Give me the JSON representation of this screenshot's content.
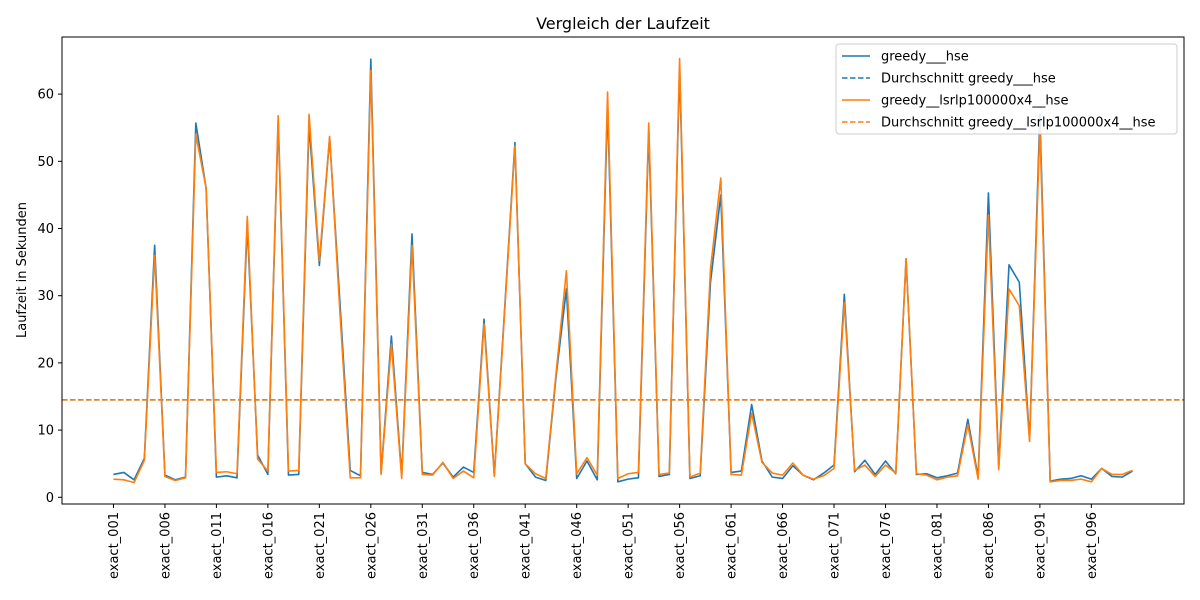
{
  "chart_data": {
    "type": "line",
    "title": "Vergleich der Laufzeit",
    "xlabel": "",
    "ylabel": "Laufzeit in Sekunden",
    "ylim": [
      -1,
      68.5
    ],
    "yticks": [
      0,
      10,
      20,
      30,
      40,
      50,
      60
    ],
    "x_tick_labels": [
      "exact_001",
      "exact_006",
      "exact_011",
      "exact_016",
      "exact_021",
      "exact_026",
      "exact_031",
      "exact_036",
      "exact_041",
      "exact_046",
      "exact_051",
      "exact_056",
      "exact_061",
      "exact_066",
      "exact_071",
      "exact_076",
      "exact_081",
      "exact_086",
      "exact_091",
      "exact_096"
    ],
    "grid": false,
    "legend_position": "top-right",
    "colors": {
      "greedy_hse": "#1f77b4",
      "greedy_lsrlp": "#ff7f0e"
    },
    "series": [
      {
        "name": "greedy___hse",
        "style": "solid",
        "color": "#1f77b4",
        "values": [
          3.4,
          3.7,
          2.6,
          5.8,
          37.5,
          3.3,
          2.6,
          3.0,
          55.7,
          46.0,
          3.0,
          3.2,
          2.9,
          40.5,
          6.3,
          3.4,
          56.0,
          3.3,
          3.4,
          55.5,
          34.5,
          53.5,
          29.0,
          4.0,
          3.2,
          65.2,
          3.6,
          24.0,
          3.2,
          39.2,
          3.7,
          3.4,
          5.1,
          3.0,
          4.5,
          3.7,
          26.5,
          3.3,
          28.0,
          52.8,
          5.0,
          3.0,
          2.5,
          18.0,
          31.0,
          2.8,
          5.4,
          2.6,
          58.5,
          2.3,
          2.7,
          2.9,
          54.5,
          3.1,
          3.4,
          64.0,
          2.8,
          3.2,
          32.0,
          45.0,
          3.7,
          3.9,
          13.8,
          5.4,
          3.0,
          2.8,
          4.7,
          3.3,
          2.6,
          3.6,
          4.8,
          30.2,
          3.8,
          5.5,
          3.4,
          5.4,
          3.5,
          35.5,
          3.4,
          3.5,
          2.9,
          3.2,
          3.6,
          11.6,
          3.0,
          45.3,
          4.5,
          34.6,
          32.0,
          8.5,
          57.0,
          2.4,
          2.7,
          2.8,
          3.2,
          2.7,
          4.3,
          3.1,
          3.0,
          3.9
        ],
        "average": 14.5
      },
      {
        "name": "greedy__lsrlp100000x4__hse",
        "style": "solid",
        "color": "#ff7f0e",
        "values": [
          2.7,
          2.6,
          2.2,
          5.5,
          36.0,
          3.1,
          2.5,
          2.9,
          54.0,
          46.0,
          3.7,
          3.8,
          3.5,
          41.8,
          5.7,
          3.9,
          56.8,
          3.9,
          4.0,
          57.0,
          35.2,
          53.7,
          27.5,
          2.9,
          2.9,
          63.5,
          3.4,
          22.8,
          2.8,
          37.5,
          3.4,
          3.3,
          5.2,
          2.8,
          3.9,
          2.9,
          25.8,
          3.1,
          27.5,
          52.3,
          5.0,
          3.5,
          2.8,
          18.5,
          33.7,
          3.5,
          5.9,
          3.3,
          60.3,
          2.8,
          3.5,
          3.7,
          55.7,
          3.4,
          3.6,
          65.3,
          3.0,
          3.6,
          34.0,
          47.5,
          3.4,
          3.3,
          12.5,
          5.2,
          3.6,
          3.3,
          5.1,
          3.3,
          2.7,
          3.2,
          4.3,
          29.0,
          4.0,
          4.8,
          3.1,
          4.8,
          3.6,
          35.5,
          3.5,
          3.3,
          2.6,
          3.0,
          3.2,
          10.8,
          2.7,
          42.0,
          4.1,
          31.0,
          28.5,
          8.3,
          55.0,
          2.3,
          2.5,
          2.5,
          2.7,
          2.3,
          4.3,
          3.4,
          3.4,
          4.0
        ],
        "average": 14.5
      }
    ],
    "legend": [
      {
        "label": "greedy___hse",
        "color": "#1f77b4",
        "style": "solid"
      },
      {
        "label": "Durchschnitt greedy___hse",
        "color": "#1f77b4",
        "style": "dashed"
      },
      {
        "label": "greedy__lsrlp100000x4__hse",
        "color": "#ff7f0e",
        "style": "solid"
      },
      {
        "label": "Durchschnitt greedy__lsrlp100000x4__hse",
        "color": "#ff7f0e",
        "style": "dashed"
      }
    ]
  }
}
